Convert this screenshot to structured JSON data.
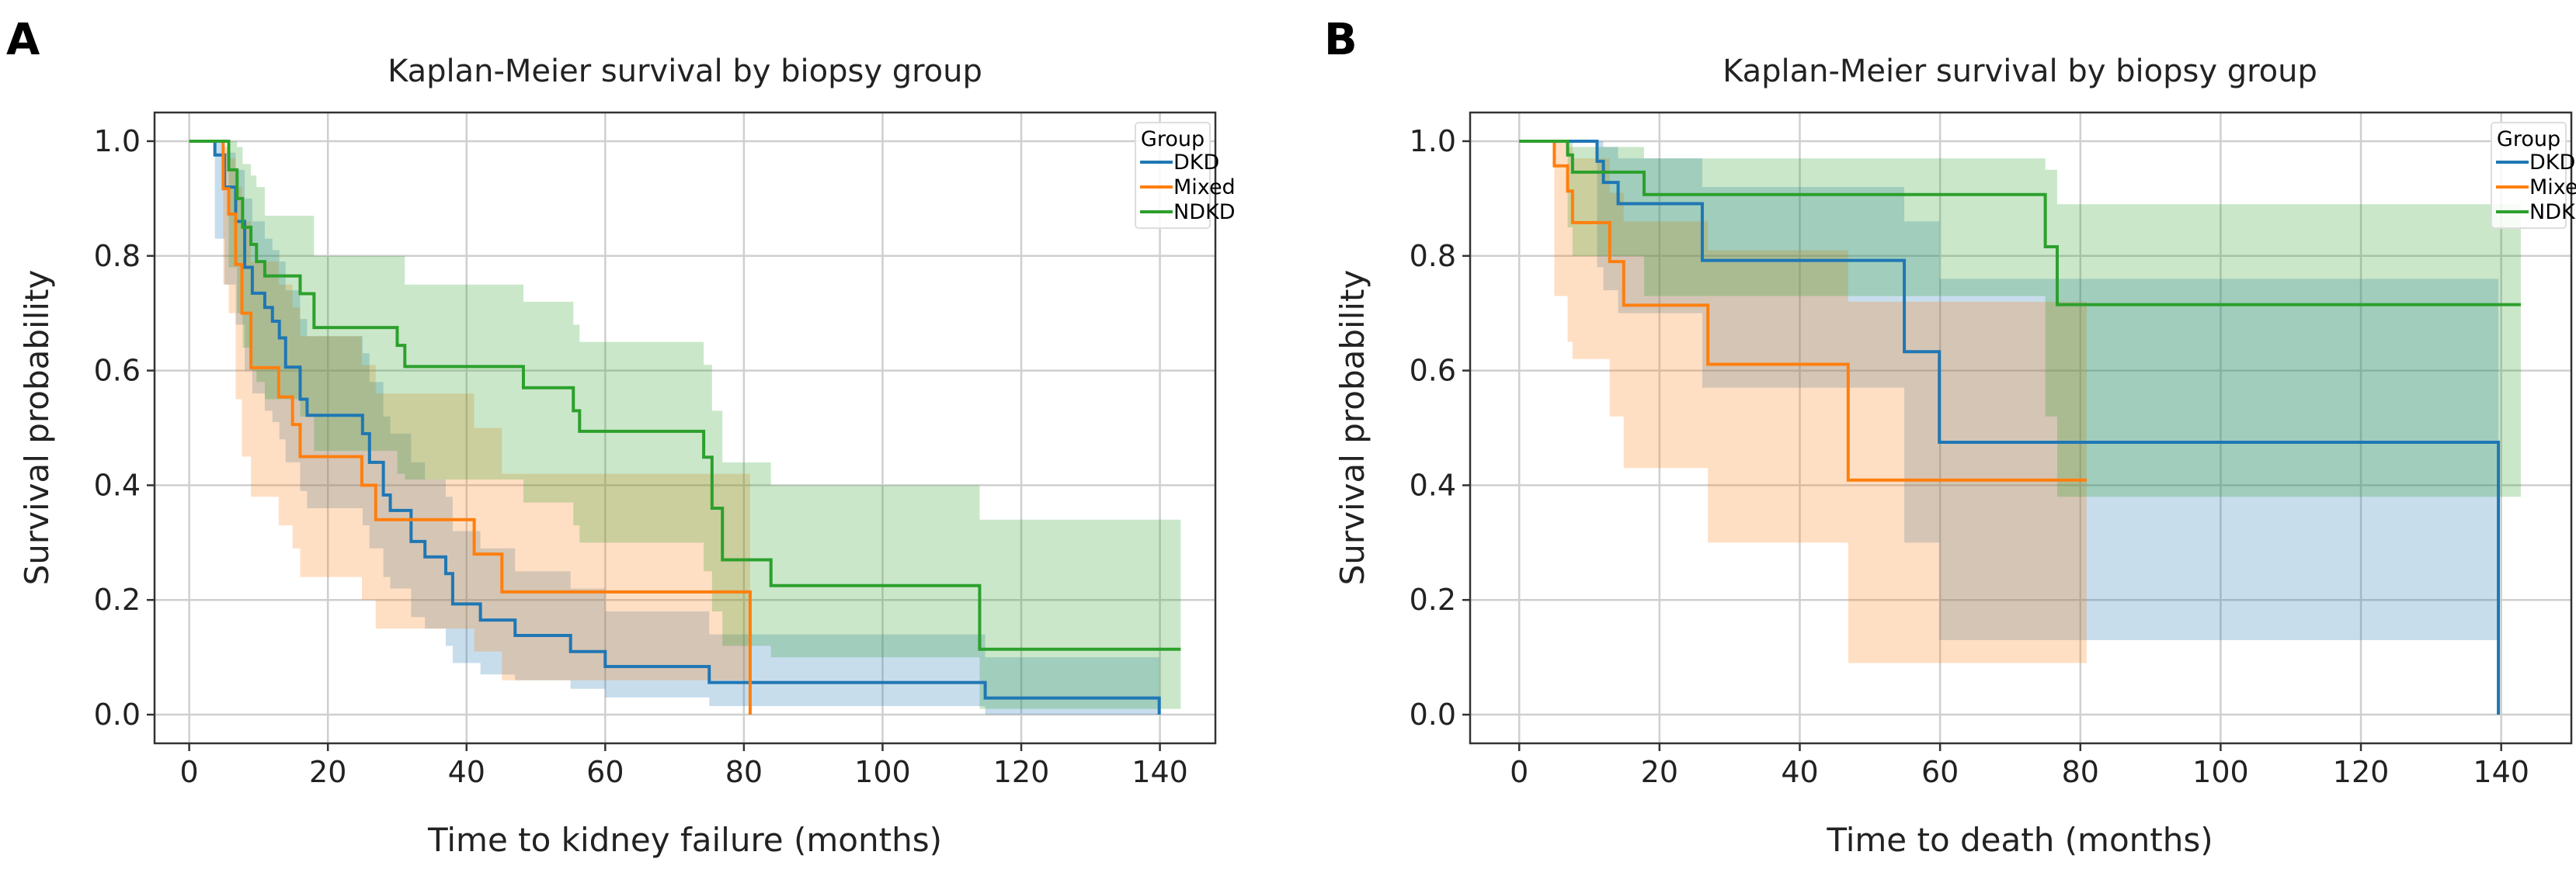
{
  "chart_data": [
    {
      "panel_label": "A",
      "type": "line",
      "step": true,
      "title": "Kaplan-Meier survival by biopsy group",
      "xlabel": "Time to kidney failure (months)",
      "ylabel": "Survival probability",
      "xlim": [
        -5,
        148
      ],
      "ylim": [
        -0.05,
        1.05
      ],
      "xticks": [
        0,
        20,
        40,
        60,
        80,
        100,
        120,
        140
      ],
      "yticks": [
        "0.0",
        "0.2",
        "0.4",
        "0.6",
        "0.8",
        "1.0"
      ],
      "grid": true,
      "legend": {
        "title": "Group",
        "placement": "top-right"
      },
      "series": [
        {
          "name": "DKD",
          "color": "#1f77b4",
          "x": [
            0,
            3.7,
            5.1,
            6.7,
            8.0,
            9.1,
            10.9,
            12,
            13,
            13.9,
            16,
            17,
            25,
            26,
            28,
            29,
            32,
            34,
            37,
            38,
            42,
            47,
            55,
            60,
            75,
            114.8,
            139.9
          ],
          "y": [
            1,
            0.976,
            0.92,
            0.86,
            0.78,
            0.735,
            0.71,
            0.686,
            0.657,
            0.606,
            0.55,
            0.522,
            0.49,
            0.44,
            0.383,
            0.356,
            0.302,
            0.275,
            0.246,
            0.193,
            0.165,
            0.138,
            0.11,
            0.084,
            0.056,
            0.029,
            0.0
          ],
          "ci_upper": [
            1,
            1,
            0.98,
            0.95,
            0.9,
            0.86,
            0.83,
            0.81,
            0.79,
            0.74,
            0.69,
            0.66,
            0.63,
            0.58,
            0.52,
            0.49,
            0.44,
            0.41,
            0.38,
            0.32,
            0.29,
            0.25,
            0.22,
            0.18,
            0.14,
            0.1,
            0.1
          ],
          "ci_lower": [
            1,
            0.83,
            0.75,
            0.68,
            0.6,
            0.56,
            0.53,
            0.51,
            0.48,
            0.44,
            0.39,
            0.36,
            0.33,
            0.29,
            0.24,
            0.22,
            0.17,
            0.15,
            0.12,
            0.09,
            0.07,
            0.06,
            0.045,
            0.03,
            0.015,
            0.0,
            0.0
          ]
        },
        {
          "name": "Mixed",
          "color": "#ff7f0e",
          "x": [
            0,
            4.9,
            5.7,
            6.7,
            7.6,
            8.9,
            12.9,
            14.9,
            16,
            24.9,
            26.9,
            41.1,
            45.1,
            80.9
          ],
          "y": [
            1,
            0.917,
            0.873,
            0.785,
            0.7,
            0.605,
            0.554,
            0.506,
            0.45,
            0.4,
            0.34,
            0.28,
            0.214,
            0.0
          ],
          "ci_upper": [
            1,
            0.99,
            0.97,
            0.92,
            0.86,
            0.79,
            0.75,
            0.71,
            0.66,
            0.61,
            0.56,
            0.5,
            0.42,
            0.42
          ],
          "ci_lower": [
            1,
            0.75,
            0.7,
            0.55,
            0.45,
            0.38,
            0.33,
            0.29,
            0.24,
            0.2,
            0.15,
            0.11,
            0.06,
            0.06
          ]
        },
        {
          "name": "NDKD",
          "color": "#2ca02c",
          "x": [
            0,
            5.7,
            6.9,
            7.7,
            8.9,
            9.7,
            10.9,
            16,
            18,
            30,
            31.1,
            48.2,
            55.4,
            56.3,
            74.2,
            75.4,
            76.9,
            83.9,
            114,
            143
          ],
          "y": [
            1,
            0.95,
            0.9,
            0.85,
            0.82,
            0.79,
            0.765,
            0.734,
            0.675,
            0.644,
            0.607,
            0.57,
            0.53,
            0.494,
            0.449,
            0.36,
            0.27,
            0.225,
            0.114,
            0.114
          ],
          "ci_upper": [
            1,
            1,
            0.99,
            0.96,
            0.94,
            0.92,
            0.87,
            0.87,
            0.8,
            0.8,
            0.75,
            0.72,
            0.68,
            0.65,
            0.61,
            0.53,
            0.44,
            0.4,
            0.34,
            0.34
          ],
          "ci_lower": [
            1,
            0.78,
            0.7,
            0.64,
            0.6,
            0.58,
            0.55,
            0.52,
            0.46,
            0.42,
            0.41,
            0.37,
            0.33,
            0.3,
            0.25,
            0.18,
            0.12,
            0.1,
            0.01,
            0.01
          ]
        }
      ]
    },
    {
      "panel_label": "B",
      "type": "line",
      "step": true,
      "title": "Kaplan-Meier survival by biopsy group",
      "xlabel": "Time to death (months)",
      "ylabel": "Survival probability",
      "xlim": [
        -7,
        150
      ],
      "ylim": [
        -0.05,
        1.05
      ],
      "xticks": [
        0,
        20,
        40,
        60,
        80,
        100,
        120,
        140
      ],
      "yticks": [
        "0.0",
        "0.2",
        "0.4",
        "0.6",
        "0.8",
        "1.0"
      ],
      "grid": true,
      "legend": {
        "title": "Group",
        "placement": "top-right"
      },
      "series": [
        {
          "name": "DKD",
          "color": "#1f77b4",
          "x": [
            0,
            11.1,
            12,
            14.1,
            26.1,
            54.9,
            59.9,
            139.6
          ],
          "y": [
            1,
            0.965,
            0.928,
            0.891,
            0.792,
            0.633,
            0.475,
            0.0
          ],
          "ci_upper": [
            1,
            1,
            0.99,
            0.97,
            0.92,
            0.86,
            0.76,
            0.76
          ],
          "ci_lower": [
            1,
            0.78,
            0.74,
            0.7,
            0.57,
            0.3,
            0.13,
            0.13
          ]
        },
        {
          "name": "Mixed",
          "color": "#ff7f0e",
          "x": [
            0,
            5,
            6.9,
            7.6,
            12.9,
            14.9,
            26.9,
            46.9,
            80.9
          ],
          "y": [
            1,
            0.957,
            0.913,
            0.858,
            0.79,
            0.714,
            0.611,
            0.409,
            0.409
          ],
          "ci_upper": [
            1,
            1,
            0.99,
            0.97,
            0.91,
            0.86,
            0.81,
            0.72,
            0.72
          ],
          "ci_lower": [
            1,
            0.73,
            0.65,
            0.62,
            0.52,
            0.43,
            0.3,
            0.09,
            0.09
          ]
        },
        {
          "name": "NDKD",
          "color": "#2ca02c",
          "x": [
            0,
            6.9,
            7.6,
            17.8,
            75,
            76.7,
            142.8
          ],
          "y": [
            1,
            0.976,
            0.946,
            0.907,
            0.816,
            0.715,
            0.715
          ],
          "ci_upper": [
            1,
            1,
            0.99,
            0.97,
            0.95,
            0.89,
            0.89
          ],
          "ci_lower": [
            1,
            0.85,
            0.8,
            0.73,
            0.52,
            0.38,
            0.38
          ]
        }
      ]
    }
  ]
}
